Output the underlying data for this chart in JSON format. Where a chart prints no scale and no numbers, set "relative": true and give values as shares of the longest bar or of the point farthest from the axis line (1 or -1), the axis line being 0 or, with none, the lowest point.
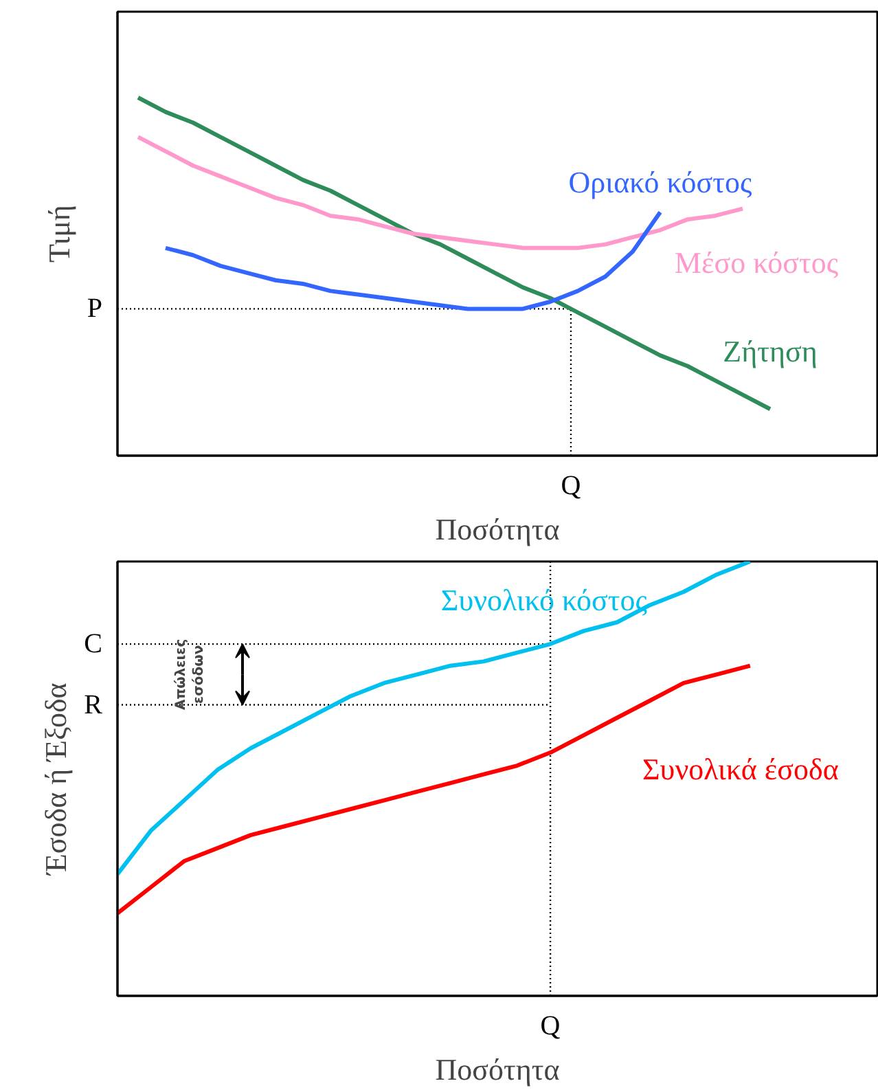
{
  "chart_data": [
    {
      "type": "line",
      "relative": true,
      "xlabel": "Ποσότητα",
      "ylabel": "Τιμή",
      "legend": false,
      "grid": false,
      "categories": [
        null,
        null,
        null,
        null,
        null,
        null,
        null,
        null,
        null,
        null,
        null,
        null,
        null,
        null,
        null,
        null,
        null,
        null,
        null,
        null,
        null,
        null,
        null,
        null,
        null
      ],
      "series": [
        {
          "name": "Ζήτηση",
          "color": "#2e8b5a",
          "values": [
            1.0,
            0.96,
            0.93,
            0.89,
            0.85,
            0.81,
            0.77,
            0.74,
            0.7,
            0.66,
            0.62,
            0.59,
            0.55,
            0.51,
            0.47,
            0.44,
            0.4,
            0.36,
            0.32,
            0.28,
            0.25,
            0.21,
            0.17,
            0.13,
            null
          ]
        },
        {
          "name": "Μέσο κόστος",
          "color": "#ff99cc",
          "values": [
            0.89,
            0.85,
            0.81,
            0.78,
            0.75,
            0.72,
            0.7,
            0.67,
            0.66,
            0.64,
            0.62,
            0.61,
            0.6,
            0.59,
            0.58,
            0.58,
            0.58,
            0.59,
            0.61,
            0.63,
            0.66,
            0.67,
            0.69,
            null,
            null
          ]
        },
        {
          "name": "Οριακό κόστος",
          "color": "#3366ff",
          "values": [
            null,
            0.58,
            0.56,
            0.53,
            0.51,
            0.49,
            0.48,
            0.46,
            0.45,
            0.44,
            0.43,
            0.42,
            0.41,
            0.41,
            0.41,
            0.43,
            0.46,
            0.5,
            0.57,
            0.68,
            null,
            null,
            null,
            null,
            null
          ]
        }
      ],
      "ref_lines": [
        {
          "axis": "y",
          "value": 0.41,
          "label": "P",
          "line_style": "dotted"
        }
      ],
      "annotations": [
        "Q"
      ]
    },
    {
      "type": "line",
      "relative": true,
      "xlabel": "Ποσότητα",
      "ylabel": "Έσοδα ή Έξοδα",
      "legend": false,
      "grid": false,
      "categories": [
        null,
        null,
        null,
        null,
        null,
        null,
        null,
        null,
        null,
        null,
        null,
        null,
        null,
        null,
        null,
        null,
        null,
        null,
        null,
        null
      ],
      "series": [
        {
          "name": "Συνολικό κόστος",
          "color": "#00c0f0",
          "values": [
            0.28,
            0.38,
            0.45,
            0.52,
            0.57,
            0.61,
            0.65,
            0.69,
            0.72,
            0.74,
            0.76,
            0.77,
            0.79,
            0.81,
            0.84,
            0.86,
            0.9,
            0.93,
            0.97,
            1.0
          ]
        },
        {
          "name": "Συνολικά έσοδα",
          "color": "#ff0000",
          "values": [
            0.19,
            0.25,
            0.31,
            0.34,
            0.37,
            0.39,
            0.41,
            0.43,
            0.45,
            0.47,
            0.49,
            0.51,
            0.53,
            0.56,
            0.6,
            0.64,
            0.68,
            0.72,
            0.74,
            0.76
          ]
        }
      ],
      "ref_lines": [
        {
          "axis": "y",
          "value": 0.81,
          "label": "C",
          "line_style": "dotted"
        },
        {
          "axis": "y",
          "value": 0.67,
          "label": "R",
          "line_style": "dotted"
        }
      ],
      "annotations": [
        "Q",
        "Απώλειες εσόδων"
      ]
    }
  ]
}
